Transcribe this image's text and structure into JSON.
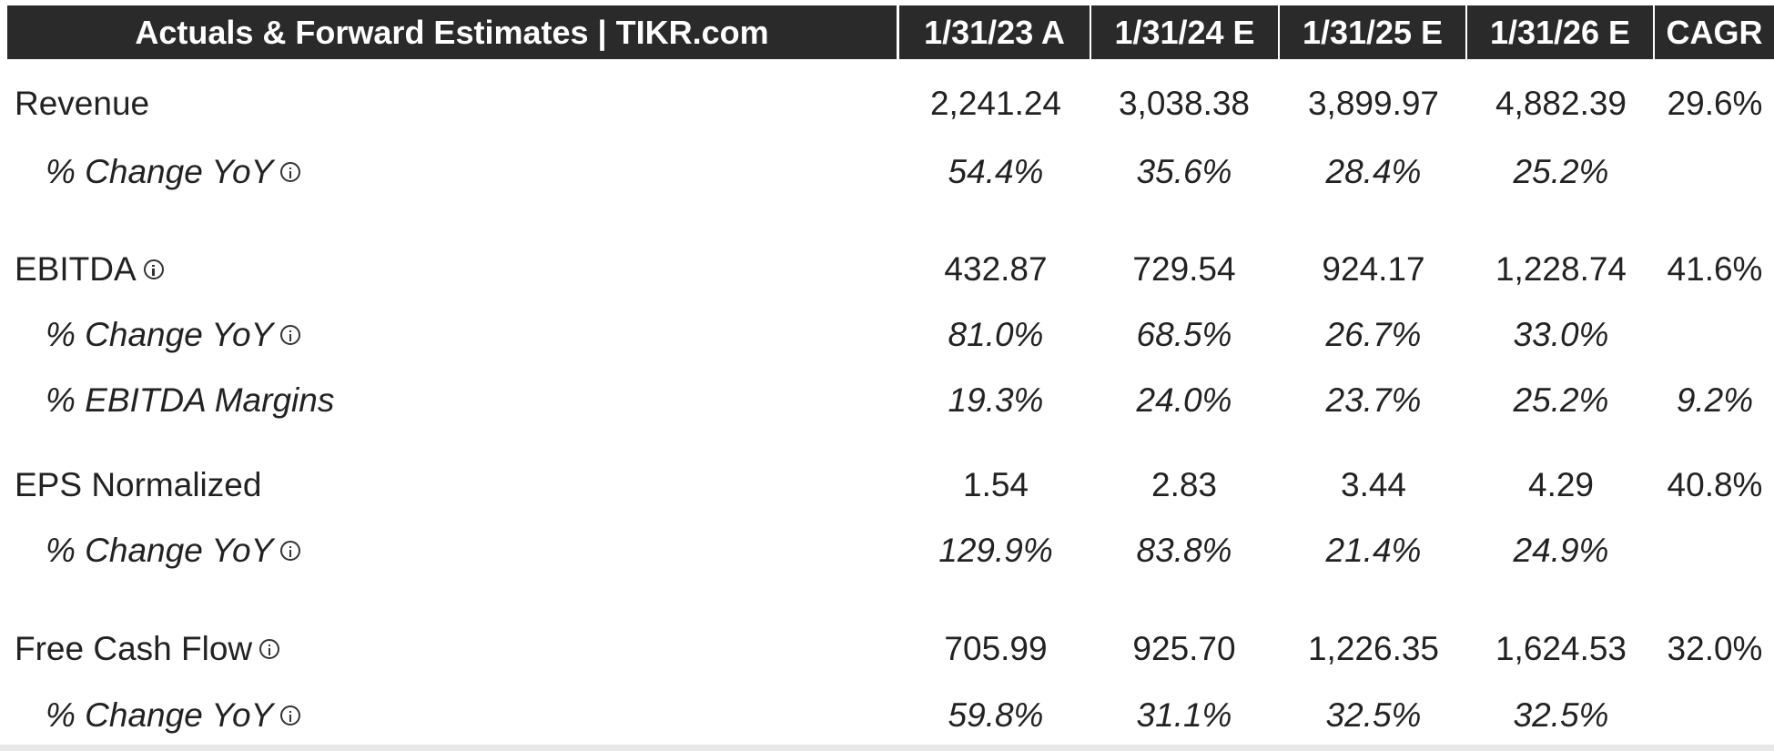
{
  "table": {
    "title": "Actuals & Forward Estimates | TIKR.com",
    "columns": [
      "1/31/23 A",
      "1/31/24 E",
      "1/31/25 E",
      "1/31/26 E",
      "CAGR"
    ],
    "rows": [
      {
        "label": "Revenue",
        "cells": [
          "2,241.24",
          "3,038.38",
          "3,899.97",
          "4,882.39",
          "29.6%"
        ]
      },
      {
        "label": "% Change YoY",
        "cells": [
          "54.4%",
          "35.6%",
          "28.4%",
          "25.2%"
        ],
        "sub": true,
        "info": true
      },
      {
        "label": "EBITDA",
        "cells": [
          "432.87",
          "729.54",
          "924.17",
          "1,228.74",
          "41.6%"
        ],
        "info": true
      },
      {
        "label": "% Change YoY",
        "cells": [
          "81.0%",
          "68.5%",
          "26.7%",
          "33.0%"
        ],
        "sub": true,
        "info": true
      },
      {
        "label": "% EBITDA Margins",
        "cells": [
          "19.3%",
          "24.0%",
          "23.7%",
          "25.2%",
          "9.2%"
        ],
        "sub": true
      },
      {
        "label": "EPS Normalized",
        "cells": [
          "1.54",
          "2.83",
          "3.44",
          "4.29",
          "40.8%"
        ]
      },
      {
        "label": "% Change YoY",
        "cells": [
          "129.9%",
          "83.8%",
          "21.4%",
          "24.9%"
        ],
        "sub": true,
        "info": true
      },
      {
        "label": "Free Cash Flow",
        "cells": [
          "705.99",
          "925.70",
          "1,226.35",
          "1,624.53",
          "32.0%"
        ],
        "info": true
      },
      {
        "label": "% Change YoY",
        "cells": [
          "59.8%",
          "31.1%",
          "32.5%",
          "32.5%"
        ],
        "sub": true,
        "info": true
      }
    ]
  }
}
